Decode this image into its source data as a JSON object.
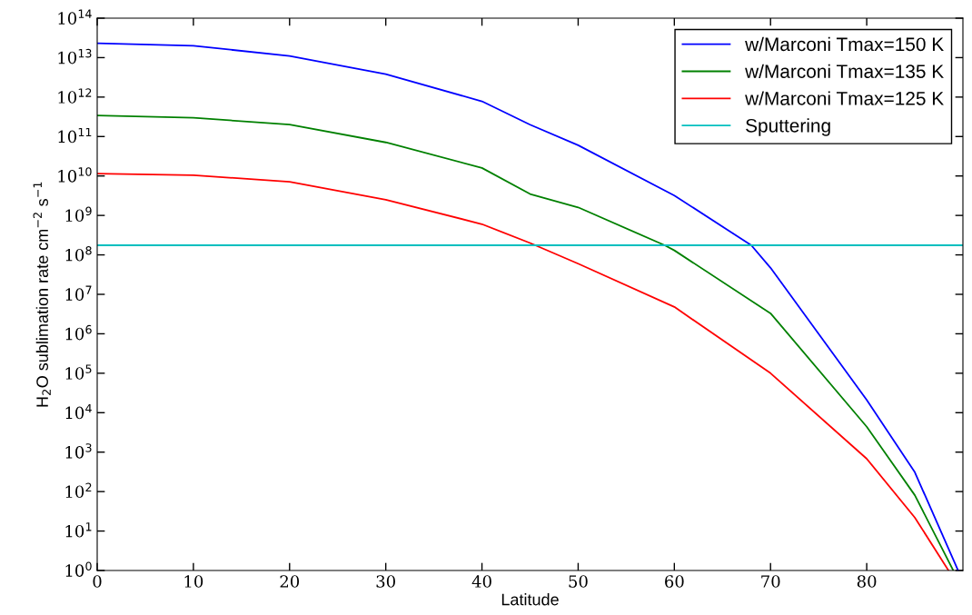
{
  "chart_data": {
    "type": "line",
    "xlabel": "Latitude",
    "ylabel": "H$_{2}$O sublimation rate cm$^{−2}$ s$^{−1}$",
    "log": "y",
    "grid": false,
    "legend": "top right",
    "marker": "none",
    "line_style": "solid",
    "xlim": [
      0,
      90
    ],
    "xticks": [
      0,
      10,
      20,
      30,
      40,
      50,
      60,
      70,
      80
    ],
    "ylim": [
      1,
      100000000000000.0
    ],
    "yticks": [
      {
        "value": 1,
        "label": "10$^{0}$"
      },
      {
        "value": 10,
        "label": "10$^{1}$"
      },
      {
        "value": 100,
        "label": "10$^{2}$"
      },
      {
        "value": 1000,
        "label": "10$^{3}$"
      },
      {
        "value": 10000,
        "label": "10$^{4}$"
      },
      {
        "value": 100000,
        "label": "10$^{5}$"
      },
      {
        "value": 1000000,
        "label": "10$^{6}$"
      },
      {
        "value": 10000000,
        "label": "10$^{7}$"
      },
      {
        "value": 100000000,
        "label": "10$^{8}$"
      },
      {
        "value": 1000000000,
        "label": "10$^{9}$"
      },
      {
        "value": 10000000000,
        "label": "10$^{10}$"
      },
      {
        "value": 100000000000,
        "label": "10$^{11}$"
      },
      {
        "value": 1000000000000,
        "label": "10$^{12}$"
      },
      {
        "value": 10000000000000,
        "label": "10$^{13}$"
      },
      {
        "value": 100000000000000,
        "label": "10$^{14}$"
      }
    ],
    "series": [
      {
        "name": "w/Marconi Tmax=150 K",
        "color": "#0000ff",
        "x": [
          0,
          10,
          20,
          30,
          40,
          45,
          50,
          60,
          68,
          70,
          80,
          85,
          89.5
        ],
        "values": [
          23000000000000.0,
          20000000000000.0,
          11000000000000.0,
          3800000000000.0,
          780000000000.0,
          200000000000.0,
          60000000000.0,
          3200000000.0,
          175000000.0,
          47000000.0,
          21000.0,
          310,
          1
        ]
      },
      {
        "name": "w/Marconi Tmax=135 K",
        "color": "#008000",
        "x": [
          0,
          10,
          20,
          30,
          40,
          45,
          50,
          59,
          60,
          70,
          80,
          85,
          89
        ],
        "values": [
          340000000000.0,
          300000000000.0,
          200000000000.0,
          71000000000.0,
          16000000000.0,
          3500000000.0,
          1600000000.0,
          175000000.0,
          130000000.0,
          3300000.0,
          4400,
          81,
          1
        ]
      },
      {
        "name": "w/Marconi Tmax=125 K",
        "color": "#ff0000",
        "x": [
          0,
          10,
          20,
          30,
          40,
          45,
          50,
          60,
          70,
          80,
          85,
          88.5
        ],
        "values": [
          11500000000.0,
          10500000000.0,
          7100000000.0,
          2500000000.0,
          600000000.0,
          200000000.0,
          60000000.0,
          4800000.0,
          100000.0,
          680,
          22,
          1
        ]
      },
      {
        "name": "Sputtering",
        "color": "#00bfbf",
        "x": [
          0,
          90
        ],
        "values": [
          175000000.0,
          175000000.0
        ]
      }
    ]
  }
}
